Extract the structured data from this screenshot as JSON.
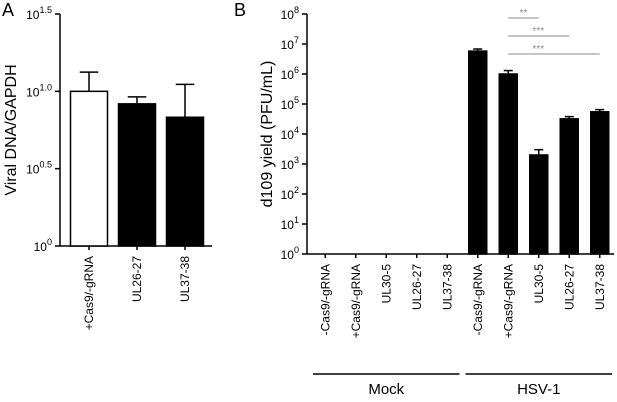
{
  "chart_data": [
    {
      "type": "bar",
      "panel": "A",
      "ylabel": "Viral DNA/GAPDH",
      "log": true,
      "categories": [
        "+Cas9/-gRNA",
        "UL26-27",
        "UL37-38"
      ],
      "values": [
        10,
        8.3,
        6.8
      ],
      "errors": [
        3.3,
        0.9,
        4.3
      ],
      "colors": [
        "#ffffff",
        "#000000",
        "#000000"
      ],
      "ylim": [
        1,
        31.6228
      ],
      "yticks": [
        {
          "value": 1,
          "label": "10",
          "sup": "0"
        },
        {
          "value": 3.16228,
          "label": "10",
          "sup": "0.5"
        },
        {
          "value": 10,
          "label": "10",
          "sup": "1.0"
        },
        {
          "value": 31.6228,
          "label": "10",
          "sup": "1.5"
        }
      ]
    },
    {
      "type": "bar",
      "panel": "B",
      "ylabel": "d109 yield (PFU/mL)",
      "log": true,
      "categories": [
        "-Cas9/-gRNA",
        "+Cas9/-gRNA",
        "UL30-5",
        "UL26-27",
        "UL37-38",
        "-Cas9/-gRNA",
        "+Cas9/-gRNA",
        "UL30-5",
        "UL26-27",
        "UL37-38"
      ],
      "values": [
        null,
        null,
        null,
        null,
        null,
        5800000,
        1000000,
        2000,
        32000,
        55000
      ],
      "errors": [
        null,
        null,
        null,
        null,
        null,
        1000000,
        300000,
        1000,
        6000,
        10000
      ],
      "colors": [
        "#000000",
        "#000000",
        "#000000",
        "#000000",
        "#000000",
        "#000000",
        "#000000",
        "#000000",
        "#000000",
        "#000000"
      ],
      "ylim": [
        1,
        100000000
      ],
      "yticks": [
        {
          "value": 1,
          "label": "10",
          "sup": "0"
        },
        {
          "value": 10,
          "label": "10",
          "sup": "1"
        },
        {
          "value": 100,
          "label": "10",
          "sup": "2"
        },
        {
          "value": 1000,
          "label": "10",
          "sup": "3"
        },
        {
          "value": 10000,
          "label": "10",
          "sup": "4"
        },
        {
          "value": 100000,
          "label": "10",
          "sup": "5"
        },
        {
          "value": 1000000,
          "label": "10",
          "sup": "6"
        },
        {
          "value": 10000000,
          "label": "10",
          "sup": "7"
        },
        {
          "value": 100000000,
          "label": "10",
          "sup": "8"
        }
      ],
      "groups": [
        {
          "label": "Mock",
          "from": 0,
          "to": 4
        },
        {
          "label": "HSV-1",
          "from": 5,
          "to": 9
        }
      ],
      "annotations": [
        {
          "text": "**",
          "between": [
            6,
            7
          ]
        },
        {
          "text": "***",
          "between": [
            6,
            8
          ]
        },
        {
          "text": "***",
          "between": [
            6,
            9
          ]
        }
      ]
    }
  ]
}
